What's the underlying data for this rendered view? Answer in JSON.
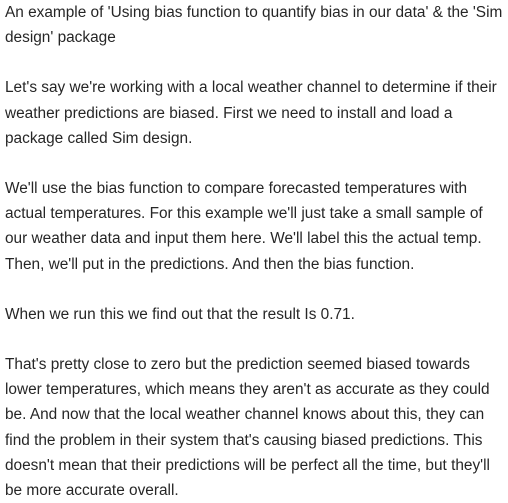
{
  "document": {
    "paragraphs": [
      "An example of 'Using bias function to quantify bias in our data' & the 'Sim design' package",
      "Let's say we're working with a local weather channel to determine if their weather predictions are biased. First we need to install and load a package called Sim design.",
      "We'll use the bias function to compare forecasted temperatures with actual temperatures. For this example we'll just take a small sample of our weather data and input them here. We'll label this the actual temp. Then, we'll put in the predictions. And then the bias function.",
      "When we run this we find out that the result Is 0.71.",
      "That's pretty close to zero but the prediction seemed biased towards lower temperatures, which means they aren't as accurate as they could be. And now that the local weather channel knows about this, they can find the problem in their system that's causing biased predictions. This doesn't mean that their predictions will be perfect all the time, but they'll be more accurate overall."
    ]
  }
}
